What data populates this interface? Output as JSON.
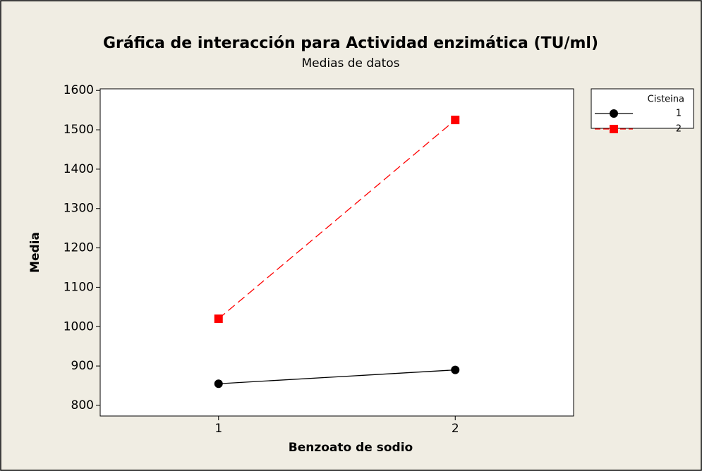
{
  "chart_data": {
    "type": "line",
    "title": "Gráfica de interacción para Actividad enzimática (TU/ml)",
    "subtitle": "Medias de datos",
    "xlabel": "Benzoato de sodio",
    "ylabel": "Media",
    "x": [
      1,
      2
    ],
    "xlim": [
      0.5,
      2.5
    ],
    "xticks": [
      1,
      2
    ],
    "ylim": [
      773,
      1604
    ],
    "yticks": [
      800,
      900,
      1000,
      1100,
      1200,
      1300,
      1400,
      1500,
      1600
    ],
    "legend_title": "Cisteina",
    "legend": "outside-right",
    "series": [
      {
        "name": "1",
        "color": "#000000",
        "marker": "circle",
        "dash": false,
        "values": [
          855,
          890
        ]
      },
      {
        "name": "2",
        "color": "#ff0000",
        "marker": "square",
        "dash": true,
        "values": [
          1020,
          1525
        ]
      }
    ]
  }
}
